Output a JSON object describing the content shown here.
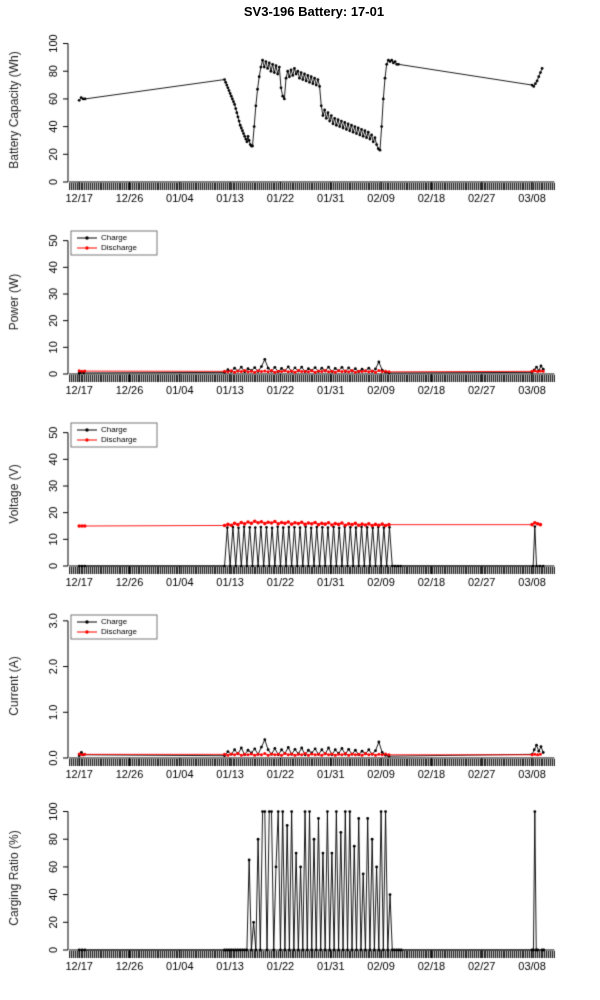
{
  "page_title": "SV3-196 Battery: 17-01",
  "x_axis": {
    "range": [
      -2,
      86
    ],
    "tick_positions": [
      0,
      9,
      18,
      27,
      36,
      45,
      54,
      63,
      72,
      81
    ],
    "tick_labels": [
      "12/17",
      "12/26",
      "01/04",
      "01/13",
      "01/22",
      "01/31",
      "02/09",
      "02/18",
      "02/27",
      "03/08"
    ]
  },
  "legend": {
    "items": [
      {
        "label": "Charge",
        "color": "#000000"
      },
      {
        "label": "Discharge",
        "color": "#ff0000"
      }
    ]
  },
  "colors": {
    "charge": "#000000",
    "discharge": "#ff0000",
    "rug_band": "#b8b8b8"
  },
  "chart_data": [
    {
      "type": "line",
      "ylabel": "Battery Capacity (Wh)",
      "ylim": [
        0,
        104
      ],
      "yticks": [
        0,
        20,
        40,
        60,
        80,
        100
      ],
      "ytick_labels": [
        "0",
        "20",
        "40",
        "60",
        "80",
        "100"
      ],
      "legend": false,
      "series": [
        {
          "name": "Battery Capacity",
          "color": "#000000",
          "r": 1.4,
          "runs": [
            [
              0,
              0.35,
              [
                59,
                61,
                60,
                60
              ]
            ],
            [
              26,
              0.2,
              [
                74,
                72,
                70,
                68,
                66,
                64,
                62,
                60,
                58,
                56,
                53,
                50,
                47,
                44,
                41,
                39,
                37,
                35,
                33,
                31,
                29,
                33,
                30,
                27,
                26,
                26
              ]
            ],
            [
              31.3,
              0.3,
              [
                40,
                55,
                67,
                76,
                83,
                88
              ]
            ],
            [
              33.1,
              0.3,
              [
                83,
                87,
                82,
                86,
                80,
                85,
                79,
                84,
                78,
                83
              ]
            ],
            [
              36.1,
              0.3,
              [
                68,
                62,
                60
              ]
            ],
            [
              37,
              0.3,
              [
                75,
                80,
                76,
                81,
                77,
                82,
                78,
                80,
                75,
                79,
                74,
                78,
                73,
                77,
                72,
                76,
                71,
                75,
                70,
                74,
                69
              ]
            ],
            [
              43.3,
              0.3,
              [
                55,
                48,
                52,
                46,
                50,
                44,
                48,
                42,
                46,
                41,
                45,
                40,
                44,
                39,
                43,
                38,
                42,
                37,
                41,
                36,
                40,
                35,
                39,
                34,
                38,
                33,
                37,
                32,
                36,
                31,
                34,
                29,
                32,
                27,
                24,
                23
              ]
            ],
            [
              54.1,
              0.3,
              [
                40,
                60,
                75,
                85,
                88,
                87,
                88,
                86,
                87,
                85,
                85
              ]
            ],
            [
              81,
              0.3,
              [
                70,
                69,
                71,
                73,
                76,
                79,
                82
              ]
            ]
          ]
        }
      ]
    },
    {
      "type": "line",
      "ylabel": "Power (W)",
      "ylim": [
        0,
        54
      ],
      "yticks": [
        0,
        10,
        20,
        30,
        40,
        50
      ],
      "ytick_labels": [
        "0",
        "10",
        "20",
        "30",
        "40",
        "50"
      ],
      "legend": true,
      "series": [
        {
          "name": "Charge",
          "color": "#000000",
          "r": 1.4,
          "runs": [
            [
              0,
              0.4,
              [
                0.3,
                0.6,
                0.4
              ]
            ],
            [
              26,
              0.6,
              [
                0.6,
                1.6,
                0.9,
                2.2,
                1.1,
                2.6,
                0.8,
                2.0,
                1.3,
                2.4,
                0.9,
                2.8,
                5.5,
                2.2,
                1.0,
                2.5,
                0.8,
                2.1,
                1.2,
                2.7,
                0.9,
                2.3,
                1.1,
                2.6,
                0.8,
                2.0,
                1.3,
                2.4,
                0.9,
                2.2,
                1.1,
                2.6,
                0.8,
                2.1,
                1.2,
                2.5,
                0.9,
                2.3,
                1.0,
                2.0,
                0.8,
                1.8,
                1.1,
                2.2,
                0.9,
                1.9,
                4.5,
                1.4,
                0.7,
                0.4
              ]
            ],
            [
              81,
              0.4,
              [
                0.6,
                1.5,
                2.6,
                1.2,
                3.0,
                1.8
              ]
            ]
          ]
        },
        {
          "name": "Discharge",
          "color": "#ff0000",
          "r": 1.5,
          "runs": [
            [
              0,
              0.5,
              [
                1.2,
                1.0,
                1.1
              ]
            ],
            [
              26,
              0.6,
              [
                1.0,
                0.8,
                1.2,
                0.7,
                1.1,
                0.9,
                1.3,
                0.8,
                1.0,
                0.7,
                1.2,
                0.9,
                1.1,
                0.8,
                1.3,
                0.7,
                1.0,
                0.9,
                1.2,
                0.8,
                1.1,
                0.7,
                1.3,
                0.9,
                1.0,
                0.8,
                1.2,
                0.7,
                1.1,
                0.9,
                1.3,
                0.8,
                1.0,
                0.7,
                1.2,
                0.9,
                1.1,
                0.8,
                1.3,
                0.7,
                1.0,
                0.9,
                1.2,
                0.8,
                1.1,
                0.7,
                1.3,
                0.9,
                1.0,
                0.8
              ]
            ],
            [
              81,
              0.5,
              [
                1.0,
                1.2,
                0.9,
                1.1,
                1.0
              ]
            ]
          ]
        }
      ]
    },
    {
      "type": "line",
      "ylabel": "Voltage (V)",
      "ylim": [
        0,
        54
      ],
      "yticks": [
        0,
        10,
        20,
        30,
        40,
        50
      ],
      "ytick_labels": [
        "0",
        "10",
        "20",
        "30",
        "40",
        "50"
      ],
      "legend": true,
      "series": [
        {
          "name": "Charge",
          "color": "#000000",
          "r": 1.3,
          "runs": [
            [
              0,
              0.5,
              [
                0,
                0,
                0
              ]
            ],
            [
              26,
              0.5,
              [
                0,
                14.4,
                0,
                14.6,
                0,
                14.3,
                0,
                14.7,
                0,
                14.5,
                0,
                14.4,
                0,
                14.6,
                0,
                14.5,
                0,
                14.3,
                0,
                14.7,
                0,
                14.4,
                0,
                14.6,
                0,
                14.5,
                0,
                14.4,
                0,
                14.7,
                0,
                14.3,
                0,
                14.6,
                0,
                14.5,
                0,
                14.4,
                0,
                14.6,
                0,
                14.3,
                0,
                14.7,
                0,
                14.5,
                0,
                14.4,
                0,
                14.6,
                0,
                14.5,
                0,
                14.3,
                0,
                14.6,
                0,
                14.4,
                0,
                14.5
              ]
            ],
            [
              56,
              0.5,
              [
                0,
                0,
                0,
                0
              ]
            ],
            [
              81.2,
              0.3,
              [
                0,
                14.8,
                0
              ]
            ],
            [
              82.4,
              0.6,
              [
                0,
                0
              ]
            ]
          ]
        },
        {
          "name": "Discharge",
          "color": "#ff0000",
          "r": 1.8,
          "runs": [
            [
              0,
              0.5,
              [
                15,
                15,
                15
              ]
            ],
            [
              26,
              0.6,
              [
                15.2,
                15.6,
                15.3,
                16.0,
                15.5,
                16.3,
                15.8,
                16.5,
                16.0,
                16.8,
                16.2,
                16.6,
                15.9,
                16.4,
                16.1,
                16.7,
                15.8,
                16.3,
                16.0,
                16.5,
                15.7,
                16.2,
                15.9,
                16.4,
                15.6,
                16.1,
                15.8,
                16.3,
                15.5,
                16.0,
                15.7,
                16.2,
                15.4,
                15.9,
                15.6,
                16.1,
                15.3,
                15.8,
                15.5,
                16.0,
                15.3,
                15.7,
                15.4,
                15.8,
                15.2,
                15.6,
                15.3,
                15.7,
                15.2,
                15.5
              ]
            ],
            [
              81,
              0.5,
              [
                15.5,
                16.2,
                15.8,
                15.5
              ]
            ]
          ]
        }
      ]
    },
    {
      "type": "line",
      "ylabel": "Current (A)",
      "ylim": [
        0,
        3.15
      ],
      "yticks": [
        0,
        1,
        2,
        3
      ],
      "ytick_labels": [
        "0.0",
        "1.0",
        "2.0",
        "3.0"
      ],
      "legend": true,
      "series": [
        {
          "name": "Charge",
          "color": "#000000",
          "r": 1.4,
          "runs": [
            [
              0,
              0.4,
              [
                0.05,
                0.12,
                0.07
              ]
            ],
            [
              26,
              0.6,
              [
                0.05,
                0.14,
                0.08,
                0.18,
                0.09,
                0.22,
                0.07,
                0.17,
                0.11,
                0.2,
                0.08,
                0.24,
                0.4,
                0.18,
                0.08,
                0.21,
                0.07,
                0.18,
                0.1,
                0.23,
                0.08,
                0.19,
                0.09,
                0.22,
                0.07,
                0.17,
                0.11,
                0.2,
                0.08,
                0.18,
                0.09,
                0.22,
                0.07,
                0.18,
                0.1,
                0.21,
                0.08,
                0.19,
                0.08,
                0.17,
                0.07,
                0.15,
                0.09,
                0.18,
                0.08,
                0.16,
                0.35,
                0.12,
                0.06,
                0.04
              ]
            ],
            [
              81,
              0.4,
              [
                0.08,
                0.18,
                0.28,
                0.15,
                0.25,
                0.12
              ]
            ]
          ]
        },
        {
          "name": "Discharge",
          "color": "#ff0000",
          "r": 1.5,
          "runs": [
            [
              0,
              0.5,
              [
                0.09,
                0.07,
                0.08
              ]
            ],
            [
              26,
              0.6,
              [
                0.08,
                0.06,
                0.09,
                0.07,
                0.1,
                0.06,
                0.08,
                0.07,
                0.09,
                0.06,
                0.08,
                0.07,
                0.1,
                0.06,
                0.09,
                0.07,
                0.08,
                0.06,
                0.1,
                0.07,
                0.09,
                0.06,
                0.08,
                0.07,
                0.1,
                0.06,
                0.09,
                0.07,
                0.08,
                0.06,
                0.1,
                0.07,
                0.09,
                0.06,
                0.08,
                0.07,
                0.1,
                0.06,
                0.09,
                0.07,
                0.08,
                0.06,
                0.1,
                0.07,
                0.09,
                0.06,
                0.08,
                0.07,
                0.09,
                0.07
              ]
            ],
            [
              81,
              0.5,
              [
                0.07,
                0.08,
                0.07,
                0.08
              ]
            ]
          ]
        }
      ]
    },
    {
      "type": "line",
      "ylabel": "Carging Ratio (%)",
      "ylim": [
        0,
        104
      ],
      "yticks": [
        0,
        20,
        40,
        60,
        80,
        100
      ],
      "ytick_labels": [
        "0",
        "20",
        "40",
        "60",
        "80",
        "100"
      ],
      "legend": false,
      "series": [
        {
          "name": "Charging Ratio",
          "color": "#000000",
          "r": 1.4,
          "runs": [
            [
              0,
              0.5,
              [
                0,
                0,
                0
              ]
            ],
            [
              26,
              0.4,
              [
                0,
                0,
                0,
                0,
                0,
                0,
                0,
                0,
                0,
                0
              ]
            ],
            [
              30,
              0.4,
              [
                0,
                65,
                0,
                20,
                0,
                80,
                0,
                100,
                100,
                0,
                100,
                100,
                0,
                60,
                100,
                0,
                100,
                0,
                90,
                0,
                100,
                0,
                70,
                0,
                60,
                0,
                100,
                0,
                100,
                0,
                80,
                0,
                95,
                0,
                70,
                0,
                100,
                0,
                70,
                0,
                100,
                0,
                85,
                0,
                100,
                0,
                100,
                0,
                75,
                0,
                95,
                0,
                55,
                0,
                95,
                0,
                80,
                0,
                60,
                0,
                100,
                0,
                100,
                0,
                40,
                0
              ]
            ],
            [
              56.4,
              0.4,
              [
                0,
                0,
                0,
                0
              ]
            ],
            [
              81,
              0.25,
              [
                0,
                0,
                100,
                0,
                0
              ]
            ],
            [
              82.8,
              0.3,
              [
                0,
                0
              ]
            ]
          ]
        }
      ]
    }
  ]
}
